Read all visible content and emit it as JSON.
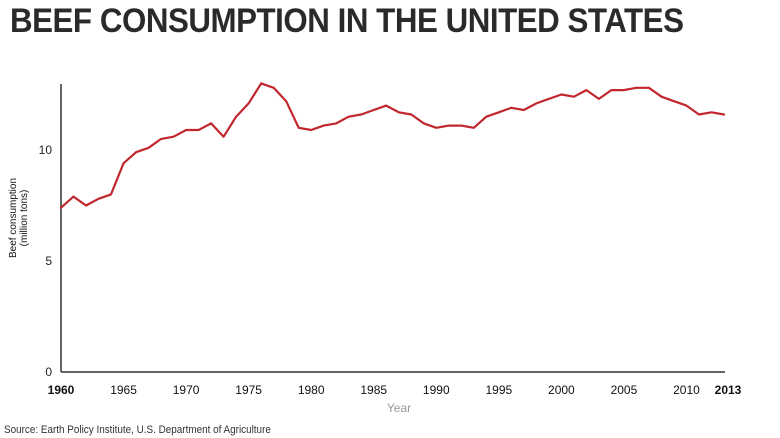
{
  "page": {
    "title": "BEEF CONSUMPTION IN THE UNITED STATES",
    "source": "Source: Earth Policy Institute, U.S. Department of Agriculture"
  },
  "colors": {
    "line": "#c1272d",
    "axis": "#333333",
    "title": "#2a2a2a"
  },
  "chart_data": {
    "type": "line",
    "title": "BEEF CONSUMPTION IN THE UNITED STATES",
    "xlabel": "Year",
    "ylabel_line1": "Beef consumption",
    "ylabel_line2": "(million tons)",
    "xlim": [
      1960,
      2013
    ],
    "ylim": [
      0,
      13
    ],
    "x_ticks": [
      1960,
      1965,
      1970,
      1975,
      1980,
      1985,
      1990,
      1995,
      2000,
      2005,
      2010,
      2013
    ],
    "y_ticks": [
      0,
      5,
      10
    ],
    "grid": false,
    "legend": "none",
    "series": [
      {
        "x": [
          1960,
          1961,
          1962,
          1963,
          1964,
          1965,
          1966,
          1967,
          1968,
          1969,
          1970,
          1971,
          1972,
          1973,
          1974,
          1975,
          1976,
          1977,
          1978,
          1979,
          1980,
          1981,
          1982,
          1983,
          1984,
          1985,
          1986,
          1987,
          1988,
          1989,
          1990,
          1991,
          1992,
          1993,
          1994,
          1995,
          1996,
          1997,
          1998,
          1999,
          2000,
          2001,
          2002,
          2003,
          2004,
          2005,
          2006,
          2007,
          2008,
          2009,
          2010,
          2011,
          2012,
          2013
        ],
        "values": [
          7.4,
          7.9,
          7.5,
          7.8,
          8.0,
          9.4,
          9.9,
          10.1,
          10.5,
          10.6,
          10.9,
          10.9,
          11.2,
          10.6,
          11.5,
          12.1,
          13.0,
          12.8,
          12.2,
          11.0,
          10.9,
          11.1,
          11.2,
          11.5,
          11.6,
          11.8,
          12.0,
          11.7,
          11.6,
          11.2,
          11.0,
          11.1,
          11.1,
          11.0,
          11.5,
          11.7,
          11.9,
          11.8,
          12.1,
          12.3,
          12.5,
          12.4,
          12.7,
          12.3,
          12.7,
          12.7,
          12.8,
          12.8,
          12.4,
          12.2,
          12.0,
          11.6,
          11.7,
          11.6
        ]
      }
    ]
  }
}
